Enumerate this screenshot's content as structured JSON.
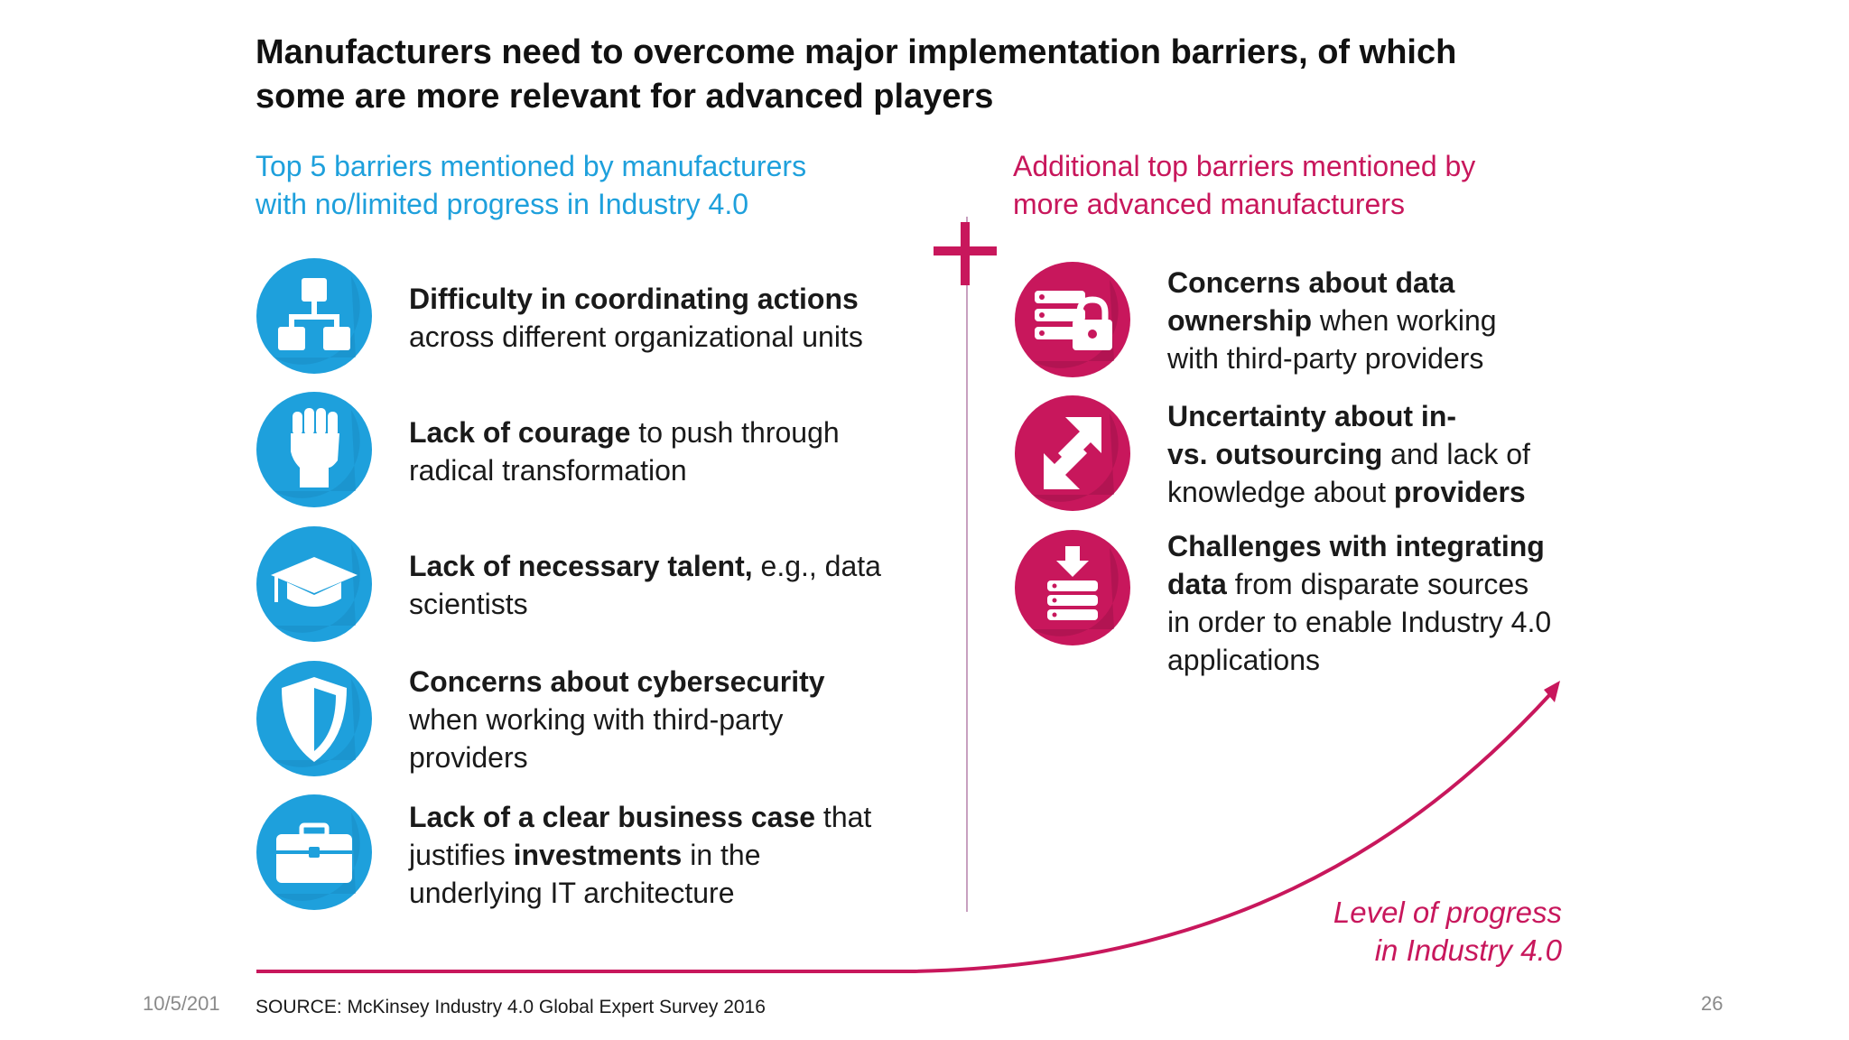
{
  "title": {
    "line1": "Manufacturers need to overcome major implementation barriers, of which",
    "line2": "some are more relevant for advanced players"
  },
  "left_column": {
    "heading_line1": "Top 5 barriers mentioned by manufacturers",
    "heading_line2": "with no/limited progress in Industry 4.0",
    "items": [
      {
        "icon": "org-chart-icon",
        "lines": [
          [
            {
              "t": "Difficulty in coordinating actions",
              "b": true
            }
          ],
          [
            {
              "t": "across different organizational units",
              "b": false
            }
          ]
        ]
      },
      {
        "icon": "raised-fist-icon",
        "lines": [
          [
            {
              "t": "Lack of courage",
              "b": true
            },
            {
              "t": " to push through",
              "b": false
            }
          ],
          [
            {
              "t": "radical transformation",
              "b": false
            }
          ]
        ]
      },
      {
        "icon": "graduation-cap-icon",
        "lines": [
          [
            {
              "t": "Lack of necessary talent,",
              "b": true
            },
            {
              "t": " e.g., data",
              "b": false
            }
          ],
          [
            {
              "t": "scientists",
              "b": false
            }
          ]
        ]
      },
      {
        "icon": "shield-icon",
        "lines": [
          [
            {
              "t": "Concerns about cybersecurity",
              "b": true
            }
          ],
          [
            {
              "t": "when working with third-party",
              "b": false
            }
          ],
          [
            {
              "t": "providers",
              "b": false
            }
          ]
        ]
      },
      {
        "icon": "briefcase-icon",
        "lines": [
          [
            {
              "t": "Lack of a clear business case",
              "b": true
            },
            {
              "t": " that",
              "b": false
            }
          ],
          [
            {
              "t": "justifies ",
              "b": false
            },
            {
              "t": "investments",
              "b": true
            },
            {
              "t": " in the",
              "b": false
            }
          ],
          [
            {
              "t": "underlying IT architecture",
              "b": false
            }
          ]
        ]
      }
    ]
  },
  "right_column": {
    "heading_line1": "Additional top barriers mentioned by",
    "heading_line2": "more advanced manufacturers",
    "items": [
      {
        "icon": "server-lock-icon",
        "lines": [
          [
            {
              "t": "Concerns about data",
              "b": true
            }
          ],
          [
            {
              "t": "ownership",
              "b": true
            },
            {
              "t": " when working",
              "b": false
            }
          ],
          [
            {
              "t": "with third-party providers",
              "b": false
            }
          ]
        ]
      },
      {
        "icon": "in-out-arrows-icon",
        "lines": [
          [
            {
              "t": "Uncertainty about in-",
              "b": true
            }
          ],
          [
            {
              "t": "vs. outsourcing",
              "b": true
            },
            {
              "t": " and lack of",
              "b": false
            }
          ],
          [
            {
              "t": "knowledge about ",
              "b": false
            },
            {
              "t": "providers",
              "b": true
            }
          ]
        ]
      },
      {
        "icon": "data-integration-icon",
        "lines": [
          [
            {
              "t": "Challenges with integrating",
              "b": true
            }
          ],
          [
            {
              "t": "data",
              "b": true
            },
            {
              "t": " from disparate sources",
              "b": false
            }
          ],
          [
            {
              "t": "in order to enable Industry 4.0",
              "b": false
            }
          ],
          [
            {
              "t": "applications",
              "b": false
            }
          ]
        ]
      }
    ]
  },
  "progress_label": {
    "line1": "Level of progress",
    "line2": "in Industry 4.0"
  },
  "source": "SOURCE: McKinsey Industry 4.0 Global Expert Survey 2016",
  "footer": {
    "date": "10/5/201",
    "page_number": "26"
  },
  "colors": {
    "left_accent": "#1ea0dc",
    "right_accent": "#c8175c",
    "title": "#111111"
  }
}
